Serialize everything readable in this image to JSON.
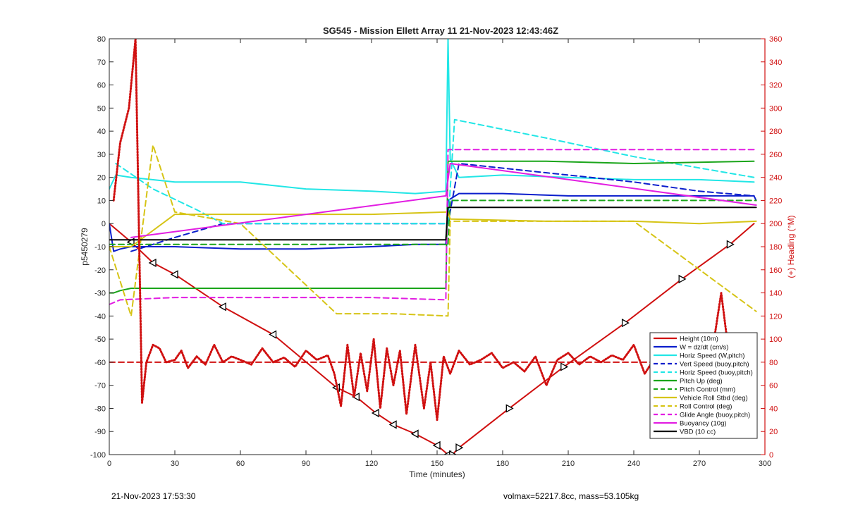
{
  "chart_data": {
    "type": "line",
    "title": "SG545 - Mission Ellett Array 11 21-Nov-2023 12:43:46Z",
    "xlabel": "Time (minutes)",
    "ylabel": "p5450279",
    "y2label": "(+) Heading (°M)",
    "xlim": [
      0,
      300
    ],
    "ylim": [
      -100,
      80
    ],
    "y2lim": [
      0,
      360
    ],
    "xticks": [
      0,
      30,
      60,
      90,
      120,
      150,
      180,
      210,
      240,
      270,
      300
    ],
    "yticks": [
      -100,
      -90,
      -80,
      -70,
      -60,
      -50,
      -40,
      -30,
      -20,
      -10,
      0,
      10,
      20,
      30,
      40,
      50,
      60,
      70,
      80
    ],
    "y2ticks": [
      0,
      20,
      40,
      60,
      80,
      100,
      120,
      140,
      160,
      180,
      200,
      220,
      240,
      260,
      280,
      300,
      320,
      340,
      360
    ],
    "grid": false,
    "legend_position": "bottom-right",
    "series": [
      {
        "name": "Height (10m)",
        "color": "#d01010",
        "style": "solid",
        "x": [
          0,
          10,
          20,
          30,
          52,
          75,
          104,
          113,
          122,
          130,
          140,
          150,
          155,
          157,
          160,
          183,
          208,
          236,
          262,
          284,
          295
        ],
        "y": [
          0,
          -8,
          -17,
          -22,
          -36,
          -48,
          -71,
          -75,
          -82,
          -87,
          -91,
          -96,
          -100,
          -100,
          -97,
          -80,
          -62,
          -43,
          -24,
          -9,
          0
        ]
      },
      {
        "name": "W = dz/dt (cm/s)",
        "color": "#0b1ecc",
        "style": "solid",
        "x": [
          0,
          2,
          5,
          10,
          30,
          60,
          90,
          120,
          140,
          154,
          155,
          160,
          180,
          210,
          240,
          270,
          295,
          296
        ],
        "y": [
          0,
          -12,
          -11,
          -10,
          -10,
          -11,
          -11,
          -10,
          -9,
          -9,
          10,
          13,
          13,
          12,
          12,
          12,
          12,
          10
        ]
      },
      {
        "name": "Horiz Speed (W,pitch)",
        "color": "#22e6e6",
        "style": "solid",
        "x": [
          0,
          3,
          10,
          30,
          60,
          90,
          120,
          140,
          154,
          155,
          156,
          160,
          180,
          210,
          240,
          270,
          295
        ],
        "y": [
          15,
          21,
          20,
          18,
          18,
          15,
          14,
          13,
          14,
          80,
          28,
          20,
          21,
          20,
          19,
          19,
          18
        ]
      },
      {
        "name": "Vert Speed (buoy,pitch)",
        "color": "#0b1ecc",
        "style": "dashed",
        "x": [
          10,
          30,
          52,
          155,
          160,
          200,
          240,
          270,
          295
        ],
        "y": [
          -12,
          -6,
          0,
          0,
          26,
          22,
          18,
          14,
          12
        ]
      },
      {
        "name": "Horiz Speed (buoy,pitch)",
        "color": "#22e6e6",
        "style": "dashed",
        "x": [
          3,
          20,
          40,
          52,
          155,
          158,
          200,
          240,
          295
        ],
        "y": [
          26,
          15,
          6,
          0,
          0,
          45,
          37,
          29,
          20
        ]
      },
      {
        "name": "Pitch Up (deg)",
        "color": "#1aa51a",
        "style": "solid",
        "x": [
          0,
          2,
          5,
          10,
          30,
          60,
          90,
          120,
          154,
          155,
          160,
          200,
          240,
          295
        ],
        "y": [
          -30,
          -30,
          -29,
          -28,
          -28,
          -28,
          -28,
          -28,
          -28,
          27,
          27,
          27,
          26,
          27
        ]
      },
      {
        "name": "Pitch Control (mm)",
        "color": "#1aa51a",
        "style": "dashed",
        "x": [
          0,
          5,
          155,
          156,
          296
        ],
        "y": [
          -9,
          -9,
          -9,
          10,
          10
        ]
      },
      {
        "name": "Vehicle Roll Stbd (deg)",
        "color": "#d6c416",
        "style": "solid",
        "x": [
          0,
          10,
          30,
          60,
          90,
          120,
          155,
          156,
          200,
          240,
          270,
          296
        ],
        "y": [
          -10,
          -10,
          4,
          4,
          4,
          4,
          5,
          2,
          1,
          1,
          0,
          1
        ]
      },
      {
        "name": "Roll Control (deg)",
        "color": "#d6c416",
        "style": "dashed",
        "x": [
          0,
          10,
          20,
          30,
          60,
          104,
          130,
          155,
          156,
          200,
          240,
          296
        ],
        "y": [
          -10,
          -40,
          34,
          5,
          0,
          -39,
          -39,
          -40,
          1,
          1,
          1,
          -38
        ]
      },
      {
        "name": "Glide Angle (buoy,pitch)",
        "color": "#e21ee2",
        "style": "dashed",
        "x": [
          0,
          5,
          30,
          60,
          90,
          120,
          154,
          155,
          160,
          200,
          240,
          280,
          295
        ],
        "y": [
          -35,
          -33,
          -32,
          -32,
          -32,
          -32,
          -33,
          32,
          32,
          32,
          32,
          32,
          32
        ]
      },
      {
        "name": "Buoyancy (10g)",
        "color": "#e21ee2",
        "style": "solid",
        "x": [
          10,
          154,
          156,
          296
        ],
        "y": [
          -6,
          12,
          26,
          8
        ]
      },
      {
        "name": "VBD (10 cc)",
        "color": "#000000",
        "style": "solid",
        "x": [
          0,
          2,
          154,
          155,
          160,
          296
        ],
        "y": [
          -7,
          -7,
          -7,
          7,
          7,
          7
        ]
      },
      {
        "name": "",
        "color": "#d01010",
        "style": "dashed",
        "axis": "right",
        "x": [
          0,
          296
        ],
        "y": [
          80,
          80
        ]
      },
      {
        "name": "",
        "color": "#d01010",
        "style": "dotted",
        "axis": "right",
        "x": [
          2,
          5,
          9,
          12,
          15,
          17,
          20,
          23,
          26,
          30,
          33,
          36,
          40,
          44,
          48,
          52,
          56,
          60,
          65,
          70,
          75,
          80,
          85,
          90,
          95,
          100,
          103,
          106,
          109,
          112,
          115,
          118,
          121,
          124,
          127,
          130,
          133,
          136,
          140,
          144,
          147,
          150,
          153,
          156,
          160,
          165,
          170,
          175,
          180,
          185,
          190,
          195,
          200,
          205,
          210,
          215,
          220,
          225,
          230,
          235,
          240,
          245,
          250,
          255,
          260,
          265,
          270,
          275,
          280,
          283,
          286,
          290,
          295
        ],
        "y": [
          220,
          270,
          300,
          360,
          45,
          80,
          95,
          92,
          80,
          82,
          90,
          75,
          85,
          78,
          95,
          80,
          85,
          82,
          78,
          92,
          80,
          84,
          76,
          90,
          82,
          86,
          70,
          42,
          95,
          50,
          88,
          55,
          100,
          40,
          92,
          60,
          90,
          35,
          95,
          40,
          80,
          30,
          85,
          70,
          90,
          78,
          82,
          88,
          75,
          80,
          72,
          85,
          60,
          82,
          88,
          78,
          85,
          80,
          86,
          82,
          95,
          70,
          85,
          78,
          80,
          55,
          90,
          78,
          140,
          95,
          70,
          90,
          65
        ]
      }
    ]
  },
  "footer": {
    "left": "21-Nov-2023 17:53:30",
    "right": "volmax=52217.8cc, mass=53.105kg"
  }
}
